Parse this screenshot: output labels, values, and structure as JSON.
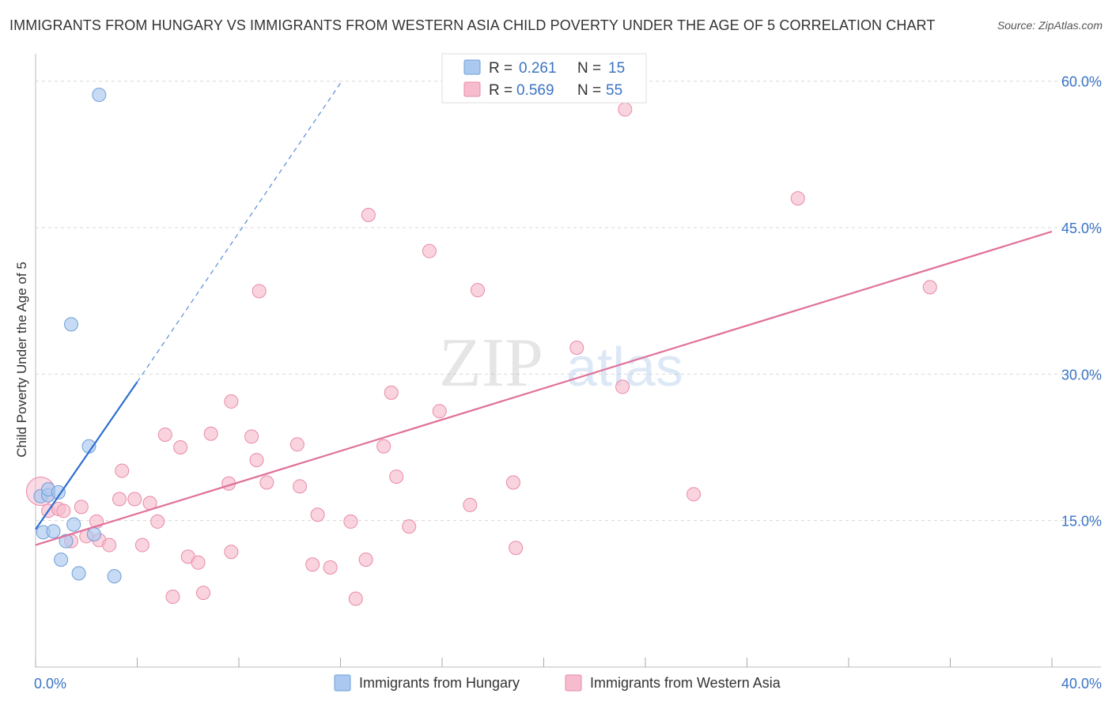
{
  "title": "IMMIGRANTS FROM HUNGARY VS IMMIGRANTS FROM WESTERN ASIA CHILD POVERTY UNDER THE AGE OF 5 CORRELATION CHART",
  "source": "Source: ZipAtlas.com",
  "watermark": {
    "zip": "ZIP",
    "atlas": "atlas"
  },
  "colors": {
    "hungary_fill": "#aac8f0",
    "hungary_stroke": "#6f9fd8",
    "hungary_line": "#2e6fd0",
    "wasia_fill": "#f6bccd",
    "wasia_stroke": "#e98aa8",
    "wasia_line": "#e0709a",
    "value_blue": "#3a74c4",
    "grid": "#d8d8d8"
  },
  "legend": {
    "rows": [
      {
        "r_label": "R =",
        "r_value": "0.261",
        "n_label": "N =",
        "n_value": "15"
      },
      {
        "r_label": "R =",
        "r_value": "0.569",
        "n_label": "N =",
        "n_value": "55"
      }
    ]
  },
  "bottom_legend": {
    "hungary": "Immigrants from Hungary",
    "wasia": "Immigrants from Western Asia"
  },
  "chart_data": {
    "type": "scatter",
    "title": "IMMIGRANTS FROM HUNGARY VS IMMIGRANTS FROM WESTERN ASIA CHILD POVERTY UNDER THE AGE OF 5 CORRELATION CHART",
    "xlabel": "",
    "ylabel": "Child Poverty Under the Age of 5",
    "xlim": [
      0,
      40
    ],
    "ylim": [
      0,
      62
    ],
    "x_tick_labels": [
      {
        "value": 0,
        "label": "0.0%"
      },
      {
        "value": 40,
        "label": "40.0%"
      }
    ],
    "y_tick_labels": [
      {
        "value": 15,
        "label": "15.0%"
      },
      {
        "value": 30,
        "label": "30.0%"
      },
      {
        "value": 45,
        "label": "45.0%"
      },
      {
        "value": 60,
        "label": "60.0%"
      }
    ],
    "series": [
      {
        "name": "Immigrants from Hungary",
        "r": 0.261,
        "n": 15,
        "points": [
          [
            0.2,
            17.5
          ],
          [
            0.3,
            13.8
          ],
          [
            0.5,
            17.6
          ],
          [
            0.5,
            18.2
          ],
          [
            0.7,
            13.9
          ],
          [
            0.9,
            17.9
          ],
          [
            1.0,
            11.0
          ],
          [
            1.2,
            12.9
          ],
          [
            1.4,
            35.1
          ],
          [
            1.5,
            14.6
          ],
          [
            1.7,
            9.6
          ],
          [
            2.1,
            22.6
          ],
          [
            2.3,
            13.6
          ],
          [
            2.5,
            58.6
          ],
          [
            3.1,
            9.3
          ]
        ],
        "trend": {
          "x0": 0,
          "y0": 14.1,
          "x1": 4.0,
          "y1": 29.2,
          "dash_to_x": 12.0,
          "dash_to_y": 59.8
        }
      },
      {
        "name": "Immigrants from Western Asia",
        "r": 0.569,
        "n": 55,
        "points": [
          [
            0.2,
            18.0
          ],
          [
            0.5,
            16.0
          ],
          [
            0.9,
            16.2
          ],
          [
            1.1,
            16.0
          ],
          [
            1.4,
            12.9
          ],
          [
            1.8,
            16.4
          ],
          [
            2.0,
            13.4
          ],
          [
            2.4,
            14.9
          ],
          [
            2.5,
            13.0
          ],
          [
            2.9,
            12.5
          ],
          [
            3.4,
            20.1
          ],
          [
            3.3,
            17.2
          ],
          [
            3.9,
            17.2
          ],
          [
            4.2,
            12.5
          ],
          [
            4.5,
            16.8
          ],
          [
            4.8,
            14.9
          ],
          [
            5.1,
            23.8
          ],
          [
            5.4,
            7.2
          ],
          [
            5.7,
            22.5
          ],
          [
            6.0,
            11.3
          ],
          [
            6.4,
            10.7
          ],
          [
            6.6,
            7.6
          ],
          [
            6.9,
            23.9
          ],
          [
            7.7,
            27.2
          ],
          [
            7.6,
            18.8
          ],
          [
            7.7,
            11.8
          ],
          [
            8.5,
            23.6
          ],
          [
            8.7,
            21.2
          ],
          [
            8.8,
            38.5
          ],
          [
            9.1,
            18.9
          ],
          [
            10.3,
            22.8
          ],
          [
            10.4,
            18.5
          ],
          [
            10.9,
            10.5
          ],
          [
            11.1,
            15.6
          ],
          [
            11.6,
            10.2
          ],
          [
            12.4,
            14.9
          ],
          [
            12.6,
            7.0
          ],
          [
            13.0,
            11.0
          ],
          [
            13.1,
            46.3
          ],
          [
            13.7,
            22.6
          ],
          [
            14.0,
            28.1
          ],
          [
            14.2,
            19.5
          ],
          [
            14.7,
            14.4
          ],
          [
            15.5,
            42.6
          ],
          [
            15.9,
            26.2
          ],
          [
            17.1,
            16.6
          ],
          [
            17.4,
            38.6
          ],
          [
            18.8,
            18.9
          ],
          [
            18.9,
            12.2
          ],
          [
            21.3,
            32.7
          ],
          [
            23.1,
            28.7
          ],
          [
            23.2,
            57.1
          ],
          [
            25.9,
            17.7
          ],
          [
            30.0,
            48.0
          ],
          [
            35.2,
            38.9
          ]
        ],
        "trend": {
          "x0": 0,
          "y0": 12.5,
          "x1": 40,
          "y1": 44.6
        }
      }
    ]
  }
}
